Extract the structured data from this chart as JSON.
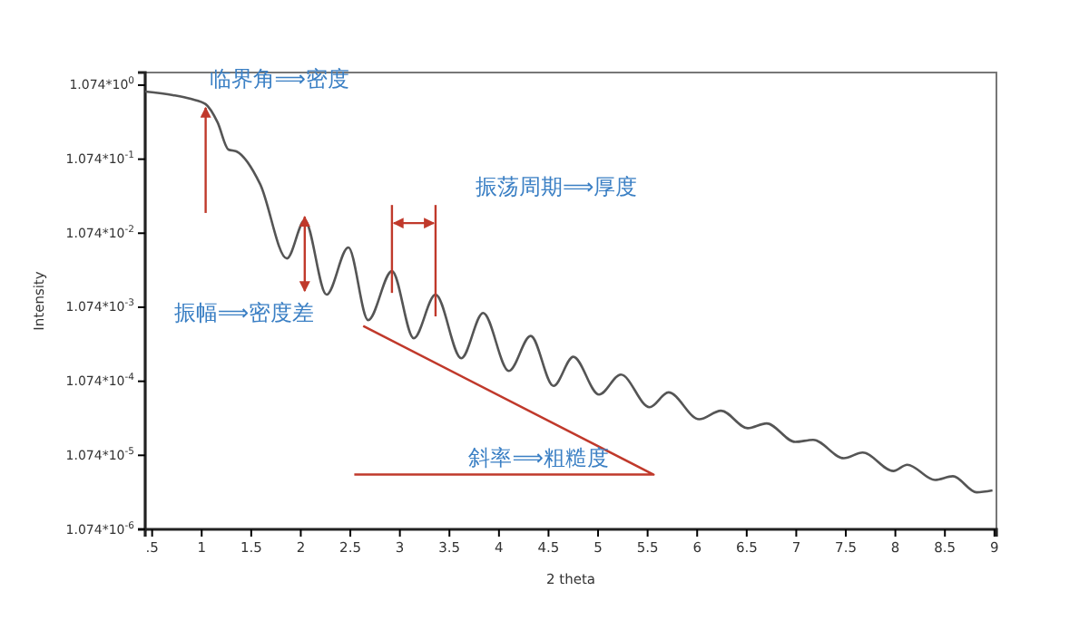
{
  "chart_data": {
    "type": "line",
    "xlabel": "2 theta",
    "ylabel": "Intensity",
    "log": "y",
    "x": [
      0.43,
      0.71,
      0.89,
      1.04,
      1.16,
      1.27,
      1.35,
      1.59,
      1.86,
      2.04,
      2.26,
      2.48,
      2.68,
      2.92,
      3.14,
      3.36,
      3.62,
      3.84,
      4.1,
      4.32,
      4.55,
      4.75,
      5.01,
      5.23,
      5.52,
      5.71,
      6.02,
      6.24,
      6.51,
      6.7,
      6.99,
      7.17,
      7.48,
      7.67,
      7.98,
      8.12,
      8.4,
      8.58,
      8.82,
      8.98
    ],
    "series": [
      {
        "color": "#555555",
        "values": [
          0.88,
          0.787,
          0.7,
          0.594,
          0.338,
          0.145,
          0.137,
          0.0495,
          0.0049,
          0.016,
          0.00159,
          0.0069,
          0.00072,
          0.0033,
          0.00041,
          0.00159,
          0.00022,
          0.0009,
          0.000148,
          0.00044,
          9.3e-05,
          0.00023,
          7.1e-05,
          0.000132,
          4.8e-05,
          7.6e-05,
          3.3e-05,
          4.3e-05,
          2.5e-05,
          2.9e-05,
          1.63e-05,
          1.74e-05,
          9.8e-06,
          1.17e-05,
          6.6e-06,
          8e-06,
          5e-06,
          5.6e-06,
          3.4e-06,
          3.6e-06
        ]
      },
      {
        "type": "line",
        "color": "#c0392b",
        "x": [
          2.63,
          5.56,
          2.54
        ],
        "values": [
          0.0006,
          5.9e-06,
          5.9e-06
        ]
      }
    ],
    "xlim": [
      0.43,
      9.02
    ],
    "xticks": [
      {
        "value": 0.5,
        "label": ".5"
      },
      1,
      1.5,
      2,
      2.5,
      3,
      3.5,
      4,
      4.5,
      5,
      5.5,
      6,
      6.5,
      7,
      7.5,
      8,
      8.5,
      9
    ],
    "ylim": [
      1.074e-06,
      1.59
    ],
    "yticks": [
      {
        "value": 1.074,
        "label": "1.074*10$^{0}$"
      },
      {
        "value": 0.1074,
        "label": "1.074*10$^{-1}$"
      },
      {
        "value": 0.01074,
        "label": "1.074*10$^{-2}$"
      },
      {
        "value": 0.001074,
        "label": "1.074*10$^{-3}$"
      },
      {
        "value": 0.0001074,
        "label": "1.074*10$^{-4}$"
      },
      {
        "value": 1.074e-05,
        "label": "1.074*10$^{-5}$"
      },
      {
        "value": 1.074e-06,
        "label": "1.074*10$^{-6}$"
      }
    ],
    "grid": false,
    "ref_lines": [
      {
        "axis": "x",
        "value": 2.92,
        "color": "#c0392b"
      },
      {
        "axis": "x",
        "value": 3.36,
        "color": "#c0392b"
      }
    ],
    "annotations": [
      {
        "text": "临界角⟹密度",
        "x": 1.04,
        "y": 0.594
      },
      {
        "text": "振幅⟹密度差",
        "x": 2.04,
        "y": 0.016
      },
      "振荡周期⟹厚度",
      "斜率⟹粗糙度"
    ]
  }
}
